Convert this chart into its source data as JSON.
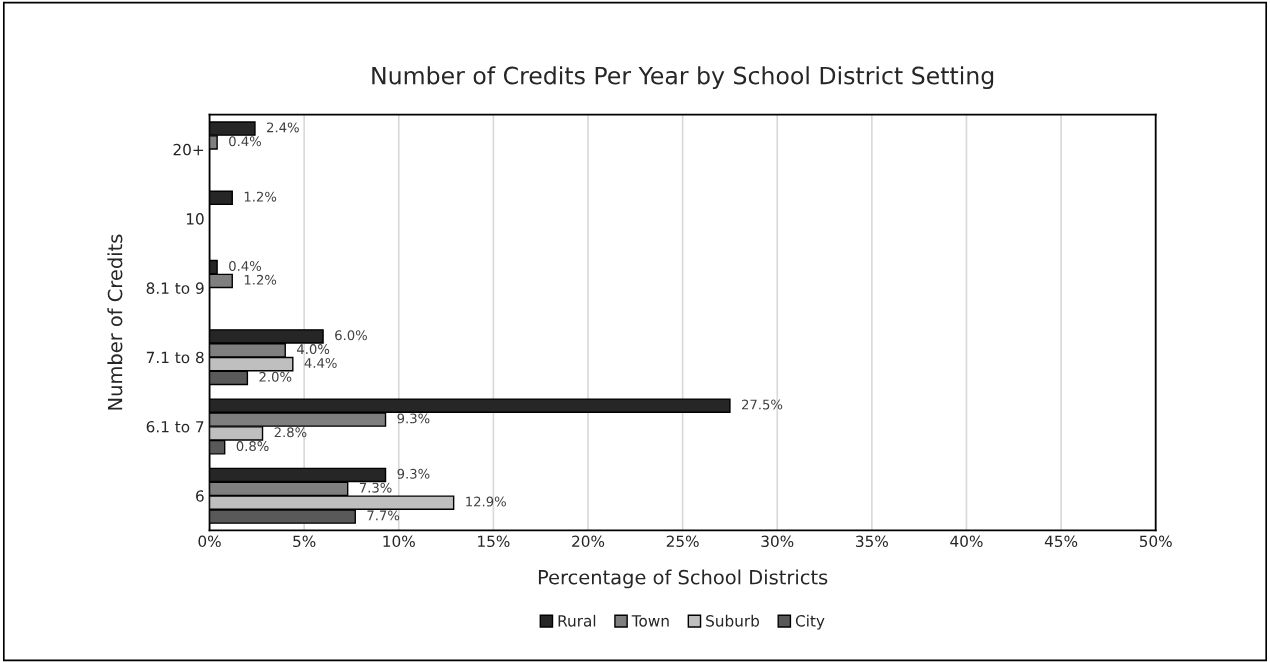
{
  "chart_data": {
    "type": "bar",
    "orientation": "horizontal",
    "title": "Number of Credits Per Year by School District Setting",
    "xlabel": "Percentage of School Districts",
    "ylabel": "Number of Credits",
    "categories": [
      "20+",
      "10",
      "8.1 to 9",
      "7.1 to 8",
      "6.1 to 7",
      "6"
    ],
    "series": [
      {
        "name": "Rural",
        "color": "#262626",
        "values": [
          2.4,
          1.2,
          0.4,
          6.0,
          27.5,
          9.3
        ],
        "value_labels": [
          "2.4%",
          "1.2%",
          "0.4%",
          "6.0%",
          "27.5%",
          "9.3%"
        ]
      },
      {
        "name": "Town",
        "color": "#7f7f7f",
        "values": [
          0.4,
          null,
          1.2,
          4.0,
          9.3,
          7.3
        ],
        "value_labels": [
          "0.4%",
          null,
          "1.2%",
          "4.0%",
          "9.3%",
          "7.3%"
        ]
      },
      {
        "name": "Suburb",
        "color": "#bfbfbf",
        "values": [
          null,
          null,
          null,
          4.4,
          2.8,
          12.9
        ],
        "value_labels": [
          null,
          null,
          null,
          "4.4%",
          "2.8%",
          "12.9%"
        ]
      },
      {
        "name": "City",
        "color": "#595959",
        "values": [
          null,
          null,
          null,
          2.0,
          0.8,
          7.7
        ],
        "value_labels": [
          null,
          null,
          null,
          "2.0%",
          "0.8%",
          "7.7%"
        ]
      }
    ],
    "xlim": [
      0,
      50
    ],
    "xticks": [
      {
        "value": 0,
        "label": "0%"
      },
      {
        "value": 5,
        "label": "5%"
      },
      {
        "value": 10,
        "label": "10%"
      },
      {
        "value": 15,
        "label": "15%"
      },
      {
        "value": 20,
        "label": "20%"
      },
      {
        "value": 25,
        "label": "25%"
      },
      {
        "value": 30,
        "label": "30%"
      },
      {
        "value": 35,
        "label": "35%"
      },
      {
        "value": 40,
        "label": "40%"
      },
      {
        "value": 45,
        "label": "45%"
      },
      {
        "value": 50,
        "label": "50%"
      }
    ],
    "grid": "x",
    "legend": "bottom"
  }
}
